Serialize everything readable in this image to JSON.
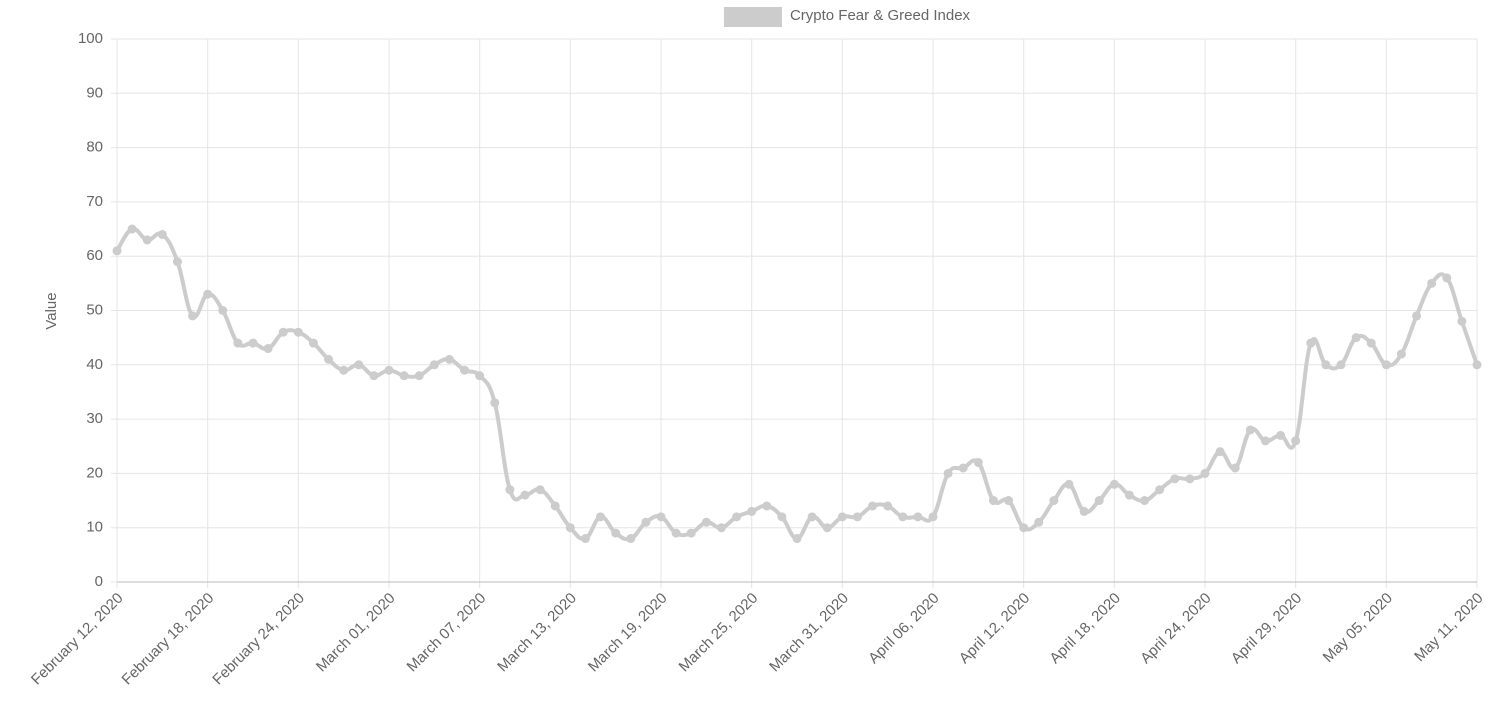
{
  "chart_data": {
    "type": "line",
    "y_label": "Value",
    "categories": [
      "February 12, 2020",
      null,
      null,
      null,
      null,
      null,
      "February 18, 2020",
      null,
      null,
      null,
      null,
      null,
      "February 24, 2020",
      null,
      null,
      null,
      null,
      null,
      "March 01, 2020",
      null,
      null,
      null,
      null,
      null,
      "March 07, 2020",
      null,
      null,
      null,
      null,
      null,
      "March 13, 2020",
      null,
      null,
      null,
      null,
      null,
      "March 19, 2020",
      null,
      null,
      null,
      null,
      null,
      "March 25, 2020",
      null,
      null,
      null,
      null,
      null,
      "March 31, 2020",
      null,
      null,
      null,
      null,
      null,
      "April 06, 2020",
      null,
      null,
      null,
      null,
      null,
      "April 12, 2020",
      null,
      null,
      null,
      null,
      null,
      "April 18, 2020",
      null,
      null,
      null,
      null,
      null,
      "April 24, 2020",
      null,
      null,
      null,
      null,
      null,
      "April 29, 2020",
      null,
      null,
      null,
      null,
      null,
      "May 05, 2020",
      null,
      null,
      null,
      null,
      null,
      "May 11, 2020"
    ],
    "series": [
      {
        "name": "Crypto Fear & Greed Index",
        "color": "#cccccc",
        "values": [
          61,
          65,
          63,
          64,
          59,
          49,
          53,
          50,
          44,
          44,
          43,
          46,
          46,
          44,
          41,
          39,
          40,
          38,
          39,
          38,
          38,
          40,
          41,
          39,
          38,
          33,
          17,
          16,
          17,
          14,
          10,
          8,
          12,
          9,
          8,
          11,
          12,
          9,
          9,
          11,
          10,
          12,
          13,
          14,
          12,
          8,
          12,
          10,
          12,
          12,
          14,
          14,
          12,
          12,
          12,
          20,
          21,
          22,
          15,
          15,
          10,
          11,
          15,
          18,
          13,
          15,
          18,
          16,
          15,
          17,
          19,
          19,
          20,
          24,
          21,
          28,
          26,
          27,
          26,
          44,
          40,
          40,
          45,
          44,
          40,
          42,
          49,
          55,
          56,
          48,
          40
        ]
      }
    ],
    "ylim": [
      0,
      100
    ],
    "yticks": [
      0,
      10,
      20,
      30,
      40,
      50,
      60,
      70,
      80,
      90,
      100
    ],
    "grid": true,
    "legend": "top"
  }
}
